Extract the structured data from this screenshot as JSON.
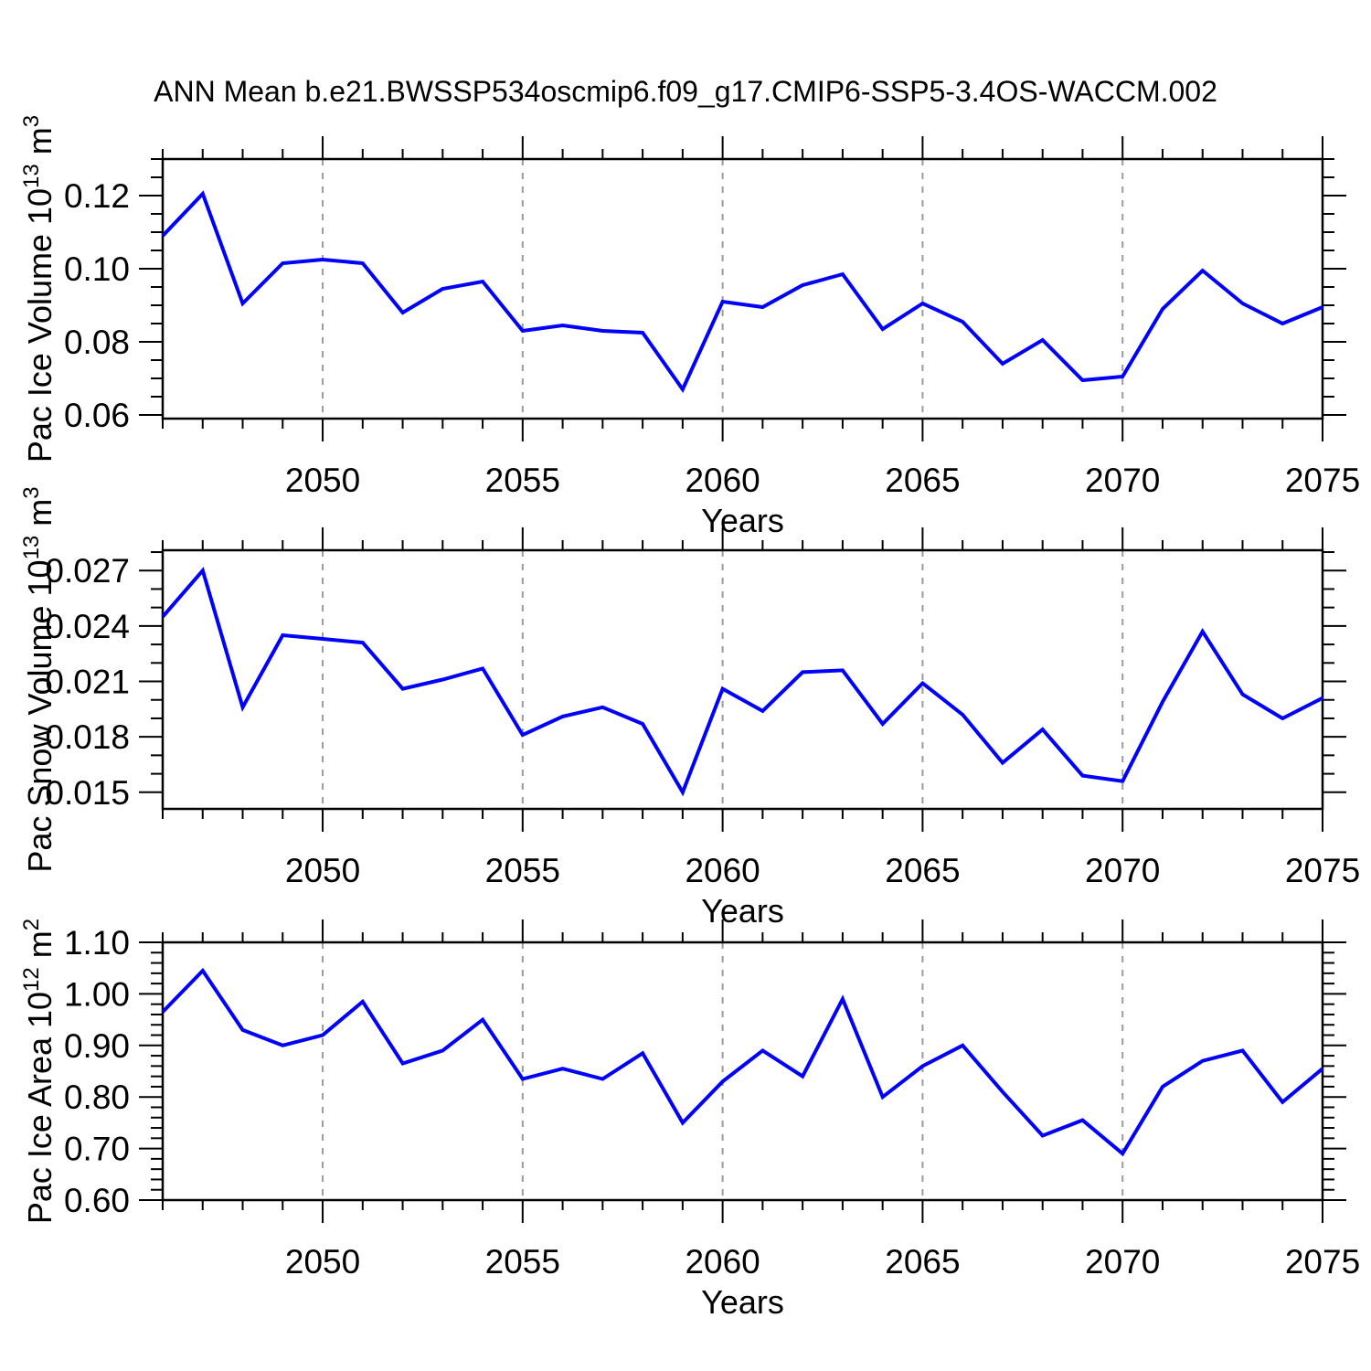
{
  "title": "ANN Mean b.e21.BWSSP534oscmip6.f09_g17.CMIP6-SSP5-3.4OS-WACCM.002",
  "colors": {
    "line": "#0000ff",
    "axis": "#000000",
    "grid": "#9b9b9b",
    "background": "#ffffff"
  },
  "chart_data": [
    {
      "type": "line",
      "id": "pac-ice-volume",
      "ylabel": "Pac Ice Volume 10^13 m^3",
      "ylabel_parts": [
        [
          "Pac Ice Volume 10",
          false
        ],
        [
          "13",
          true
        ],
        [
          " m",
          false
        ],
        [
          "3",
          true
        ]
      ],
      "xlabel": "Years",
      "x": [
        2046,
        2047,
        2048,
        2049,
        2050,
        2051,
        2052,
        2053,
        2054,
        2055,
        2056,
        2057,
        2058,
        2059,
        2060,
        2061,
        2062,
        2063,
        2064,
        2065,
        2066,
        2067,
        2068,
        2069,
        2070,
        2071,
        2072,
        2073,
        2074,
        2075
      ],
      "values": [
        0.109,
        0.1205,
        0.0905,
        0.1015,
        0.1025,
        0.1015,
        0.088,
        0.0945,
        0.0965,
        0.083,
        0.0845,
        0.083,
        0.0825,
        0.067,
        0.091,
        0.0895,
        0.0955,
        0.0985,
        0.0835,
        0.0905,
        0.0855,
        0.074,
        0.0805,
        0.0695,
        0.0705,
        0.089,
        0.0995,
        0.0905,
        0.085,
        0.0895
      ],
      "xlim": [
        2046,
        2075
      ],
      "ylim": [
        0.059,
        0.13
      ],
      "xticks": [
        2050,
        2055,
        2060,
        2065,
        2070,
        2075
      ],
      "xtick_labels": [
        "2050",
        "2055",
        "2060",
        "2065",
        "2070",
        "2075"
      ],
      "x_minor_step": 1,
      "yticks": [
        0.06,
        0.08,
        0.1,
        0.12
      ],
      "ytick_labels": [
        "0.06",
        "0.08",
        "0.10",
        "0.12"
      ],
      "y_minor_step": 0.005,
      "grid_years": [
        2050,
        2055,
        2060,
        2065,
        2070
      ],
      "grid": "vertical-dashed",
      "legend": "none"
    },
    {
      "type": "line",
      "id": "pac-snow-volume",
      "ylabel": "Pac Snow Volume 10^13 m^3",
      "ylabel_parts": [
        [
          "Pac Snow Volume 10",
          false
        ],
        [
          "13",
          true
        ],
        [
          " m",
          false
        ],
        [
          "3",
          true
        ]
      ],
      "xlabel": "Years",
      "x": [
        2046,
        2047,
        2048,
        2049,
        2050,
        2051,
        2052,
        2053,
        2054,
        2055,
        2056,
        2057,
        2058,
        2059,
        2060,
        2061,
        2062,
        2063,
        2064,
        2065,
        2066,
        2067,
        2068,
        2069,
        2070,
        2071,
        2072,
        2073,
        2074,
        2075
      ],
      "values": [
        0.0245,
        0.027,
        0.0196,
        0.0235,
        0.0233,
        0.0231,
        0.0206,
        0.0211,
        0.0217,
        0.0181,
        0.0191,
        0.0196,
        0.0187,
        0.015,
        0.0206,
        0.0194,
        0.0215,
        0.0216,
        0.0187,
        0.0209,
        0.0192,
        0.0166,
        0.0184,
        0.0159,
        0.0156,
        0.0199,
        0.0237,
        0.0203,
        0.019,
        0.0201
      ],
      "xlim": [
        2046,
        2075
      ],
      "ylim": [
        0.0141,
        0.0281
      ],
      "xticks": [
        2050,
        2055,
        2060,
        2065,
        2070,
        2075
      ],
      "xtick_labels": [
        "2050",
        "2055",
        "2060",
        "2065",
        "2070",
        "2075"
      ],
      "x_minor_step": 1,
      "yticks": [
        0.015,
        0.018,
        0.021,
        0.024,
        0.027
      ],
      "ytick_labels": [
        "0.015",
        "0.018",
        "0.021",
        "0.024",
        "0.027"
      ],
      "y_minor_step": 0.001,
      "grid_years": [
        2050,
        2055,
        2060,
        2065,
        2070
      ],
      "grid": "vertical-dashed",
      "legend": "none"
    },
    {
      "type": "line",
      "id": "pac-ice-area",
      "ylabel": "Pac Ice Area 10^12 m^2",
      "ylabel_parts": [
        [
          "Pac Ice Area 10",
          false
        ],
        [
          "12",
          true
        ],
        [
          " m",
          false
        ],
        [
          "2",
          true
        ]
      ],
      "xlabel": "Years",
      "x": [
        2046,
        2047,
        2048,
        2049,
        2050,
        2051,
        2052,
        2053,
        2054,
        2055,
        2056,
        2057,
        2058,
        2059,
        2060,
        2061,
        2062,
        2063,
        2064,
        2065,
        2066,
        2067,
        2068,
        2069,
        2070,
        2071,
        2072,
        2073,
        2074,
        2075
      ],
      "values": [
        0.965,
        1.045,
        0.93,
        0.9,
        0.92,
        0.985,
        0.865,
        0.89,
        0.95,
        0.835,
        0.855,
        0.835,
        0.885,
        0.75,
        0.83,
        0.89,
        0.84,
        0.99,
        0.8,
        0.86,
        0.9,
        0.81,
        0.725,
        0.755,
        0.69,
        0.82,
        0.87,
        0.89,
        0.79,
        0.855
      ],
      "xlim": [
        2046,
        2075
      ],
      "ylim": [
        0.6,
        1.1
      ],
      "xticks": [
        2050,
        2055,
        2060,
        2065,
        2070,
        2075
      ],
      "xtick_labels": [
        "2050",
        "2055",
        "2060",
        "2065",
        "2070",
        "2075"
      ],
      "x_minor_step": 1,
      "yticks": [
        0.6,
        0.7,
        0.8,
        0.9,
        1.0,
        1.1
      ],
      "ytick_labels": [
        "0.60",
        "0.70",
        "0.80",
        "0.90",
        "1.00",
        "1.10"
      ],
      "y_minor_step": 0.02,
      "grid_years": [
        2050,
        2055,
        2060,
        2065,
        2070
      ],
      "grid": "vertical-dashed",
      "legend": "none"
    }
  ]
}
